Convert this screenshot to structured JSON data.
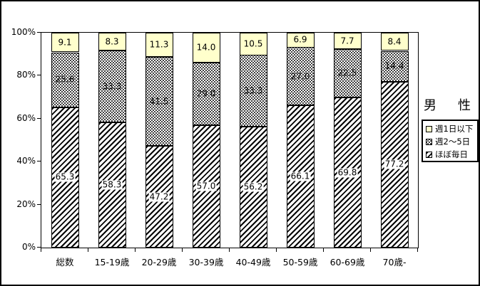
{
  "legend": {
    "title": "男　性",
    "items": [
      {
        "label": "週1日以下",
        "pattern": "yellow"
      },
      {
        "label": "週2～5日",
        "pattern": "dots"
      },
      {
        "label": "ほぼ毎日",
        "pattern": "hatch"
      }
    ]
  },
  "chart_data": {
    "type": "bar",
    "stacked": true,
    "percent_stacked": true,
    "title": "",
    "xlabel": "",
    "ylabel": "",
    "unit": "%",
    "categories": [
      "総数",
      "15-19歳",
      "20-29歳",
      "30-39歳",
      "40-49歳",
      "50-59歳",
      "60-69歳",
      "70歳-"
    ],
    "series": [
      {
        "name": "ほぼ毎日",
        "pattern": "hatch",
        "values": [
          65.3,
          58.3,
          47.2,
          57.0,
          56.2,
          66.1,
          69.8,
          77.2
        ]
      },
      {
        "name": "週2～5日",
        "pattern": "dots",
        "values": [
          25.6,
          33.3,
          41.5,
          29.0,
          33.3,
          27.0,
          22.5,
          14.4
        ]
      },
      {
        "name": "週1日以下",
        "pattern": "yellow",
        "values": [
          9.1,
          8.3,
          11.3,
          14.0,
          10.5,
          6.9,
          7.7,
          8.4
        ]
      }
    ],
    "value_label_decimals": 1,
    "yticks": [
      "0%",
      "20%",
      "40%",
      "60%",
      "80%",
      "100%"
    ],
    "ylim": [
      0,
      100
    ],
    "grid": false,
    "legend_position": "right"
  },
  "colors": {
    "segment_yellow": "#FFFFCC",
    "line": "#000000",
    "background": "#FFFFFF",
    "label_text": "#000000"
  }
}
